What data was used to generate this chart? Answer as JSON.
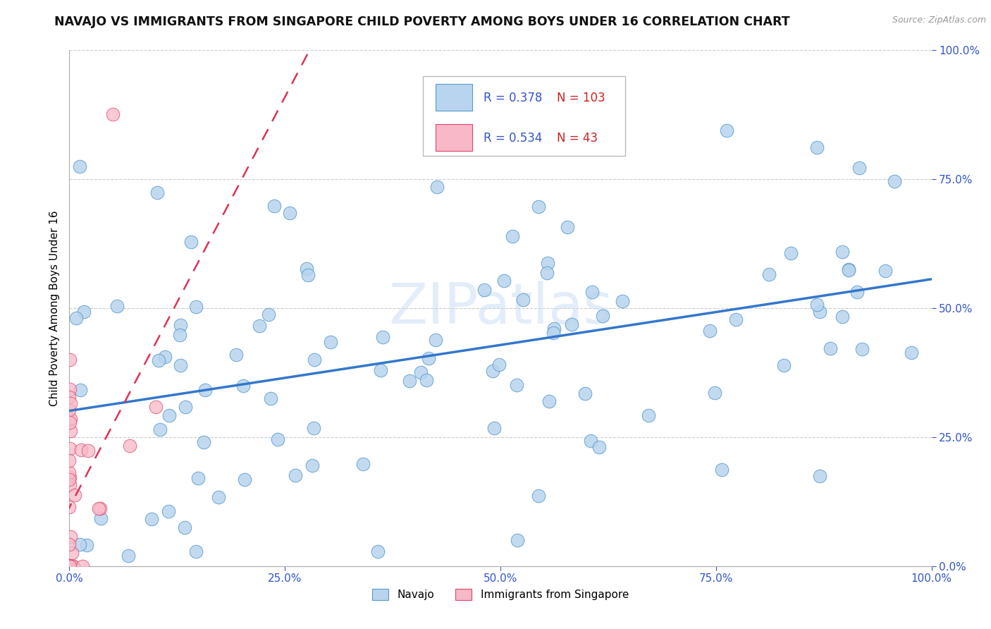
{
  "title": "NAVAJO VS IMMIGRANTS FROM SINGAPORE CHILD POVERTY AMONG BOYS UNDER 16 CORRELATION CHART",
  "source": "Source: ZipAtlas.com",
  "ylabel": "Child Poverty Among Boys Under 16",
  "navajo_R": 0.378,
  "navajo_N": 103,
  "singapore_R": 0.534,
  "singapore_N": 43,
  "navajo_color": "#b8d4ee",
  "singapore_color": "#f8b8c8",
  "navajo_edge_color": "#5599cc",
  "singapore_edge_color": "#dd4466",
  "navajo_line_color": "#3377cc",
  "singapore_line_color": "#dd3355",
  "background_color": "#ffffff",
  "watermark": "ZIPatlas",
  "grid_color": "#cccccc",
  "tick_color": "#3355cc",
  "title_color": "#111111",
  "source_color": "#999999"
}
